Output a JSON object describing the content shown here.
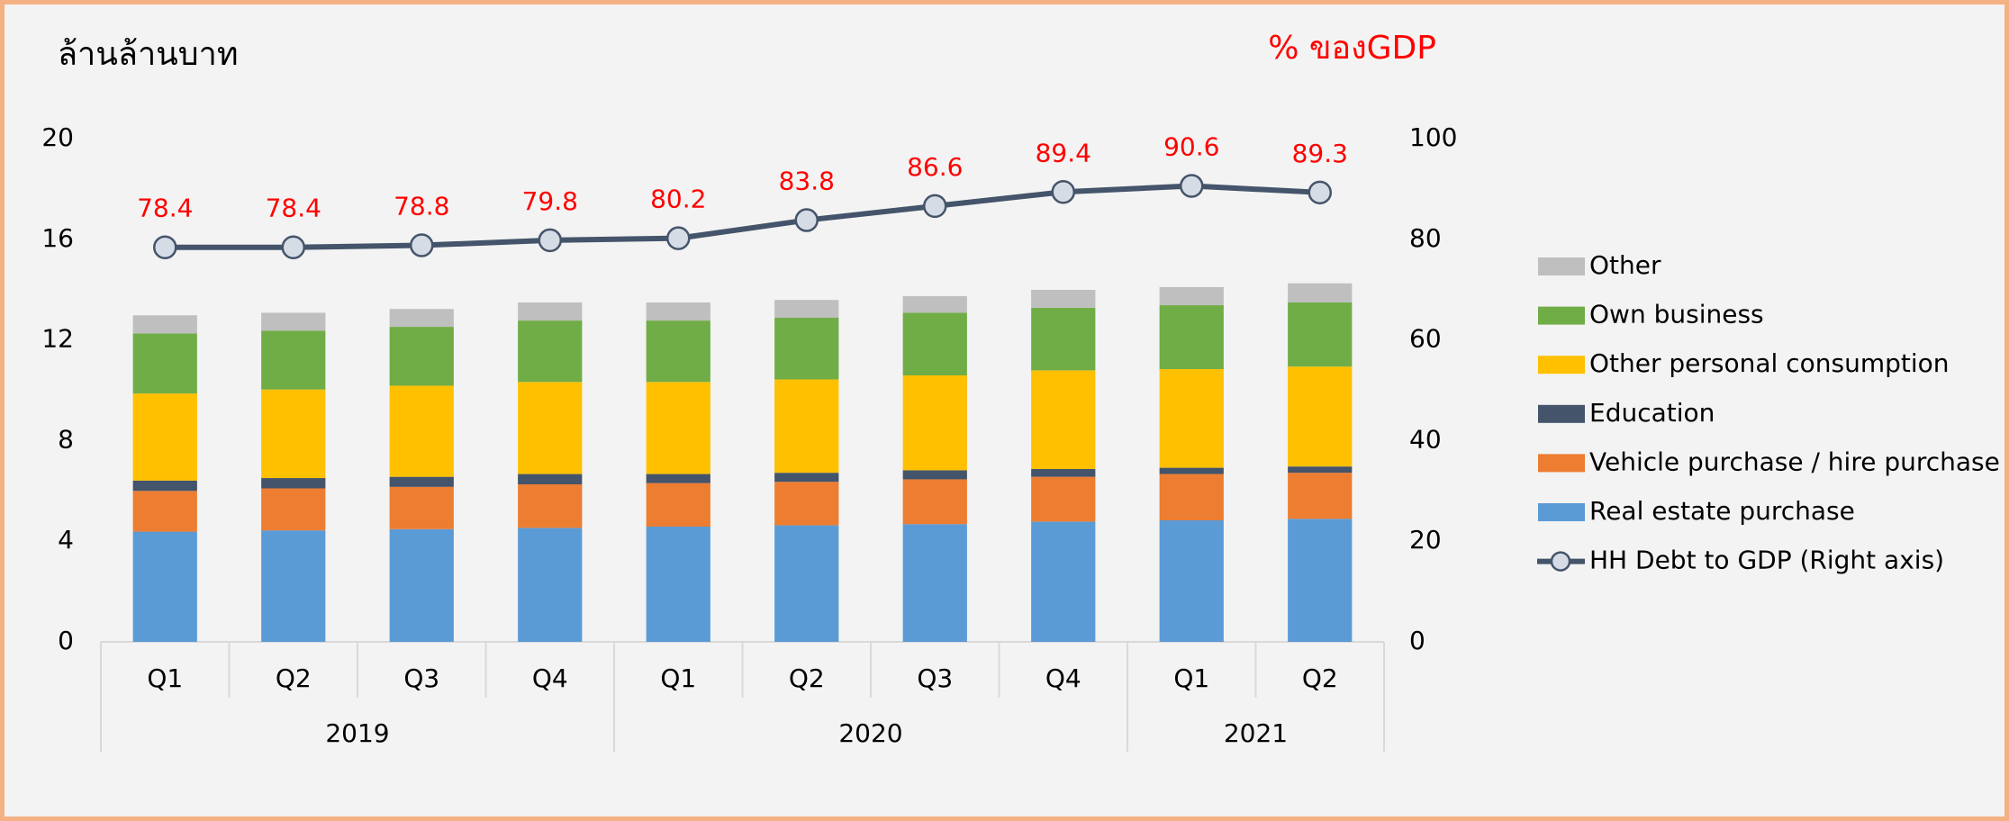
{
  "chart_data": {
    "type": "bar",
    "stacked": true,
    "title": "ล้านล้านบาท",
    "y2_title": "% ของGDP",
    "categories": [
      "Q1",
      "Q2",
      "Q3",
      "Q4",
      "Q1",
      "Q2",
      "Q3",
      "Q4",
      "Q1",
      "Q2"
    ],
    "groups": [
      {
        "label": "2019",
        "span": 4
      },
      {
        "label": "2020",
        "span": 4
      },
      {
        "label": "2021",
        "span": 2
      }
    ],
    "ylim": [
      0,
      20
    ],
    "yticks": [
      0,
      4,
      8,
      12,
      16,
      20
    ],
    "y2lim": [
      0,
      100
    ],
    "y2ticks": [
      0,
      20,
      40,
      60,
      80,
      100
    ],
    "series": [
      {
        "name": "Real estate purchase",
        "color": "#5b9bd5",
        "values": [
          4.38,
          4.43,
          4.48,
          4.53,
          4.58,
          4.63,
          4.68,
          4.78,
          4.83,
          4.89
        ]
      },
      {
        "name": "Vehicle purchase / hire purchase",
        "color": "#ed7d31",
        "values": [
          1.62,
          1.67,
          1.68,
          1.73,
          1.73,
          1.73,
          1.78,
          1.78,
          1.84,
          1.83
        ]
      },
      {
        "name": "Education",
        "color": "#44546a",
        "values": [
          0.41,
          0.41,
          0.4,
          0.41,
          0.36,
          0.36,
          0.36,
          0.31,
          0.25,
          0.25
        ]
      },
      {
        "name": "Other personal consumption",
        "color": "#ffc000",
        "values": [
          3.46,
          3.52,
          3.62,
          3.66,
          3.66,
          3.71,
          3.77,
          3.92,
          3.92,
          3.97
        ]
      },
      {
        "name": "Own business",
        "color": "#70ad47",
        "values": [
          2.39,
          2.34,
          2.34,
          2.44,
          2.44,
          2.45,
          2.49,
          2.49,
          2.54,
          2.55
        ]
      },
      {
        "name": "Other",
        "color": "#bfbfbf",
        "values": [
          0.72,
          0.71,
          0.71,
          0.72,
          0.72,
          0.71,
          0.66,
          0.71,
          0.72,
          0.76
        ]
      },
      {
        "name": "HH Debt to GDP (Right axis)",
        "type": "line",
        "axis": "y2",
        "color": "#44546a",
        "marker_color": "#d6dce5",
        "label_color": "#ff0000",
        "values": [
          78.4,
          78.4,
          78.8,
          79.8,
          80.2,
          83.8,
          86.6,
          89.4,
          90.6,
          89.3
        ]
      }
    ]
  }
}
